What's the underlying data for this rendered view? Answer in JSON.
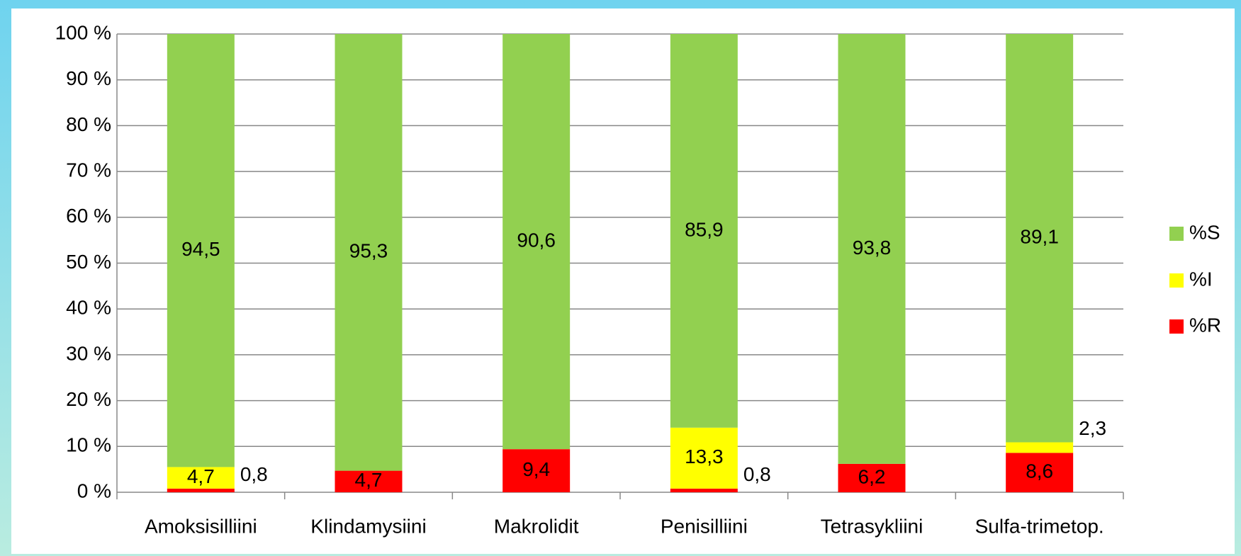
{
  "chart_data": {
    "type": "stacked_bar",
    "categories": [
      "Amoksisilliini",
      "Klindamysiini",
      "Makrolidit",
      "Penisilliini",
      "Tetrasykliini",
      "Sulfa-trimetop."
    ],
    "series": [
      {
        "name": "%R",
        "color": "#ff0000",
        "values": [
          0.8,
          4.7,
          9.4,
          0.8,
          6.2,
          8.6
        ],
        "value_labels": [
          "0,8",
          "4,7",
          "9,4",
          "0,8",
          "6,2",
          "8,6"
        ]
      },
      {
        "name": "%I",
        "color": "#ffff00",
        "values": [
          4.7,
          0,
          0,
          13.3,
          0,
          2.3
        ],
        "value_labels": [
          "4,7",
          null,
          null,
          "13,3",
          null,
          "2,3"
        ]
      },
      {
        "name": "%S",
        "color": "#92d050",
        "values": [
          94.5,
          95.3,
          90.6,
          85.9,
          93.8,
          89.1
        ],
        "value_labels": [
          "94,5",
          "95,3",
          "90,6",
          "85,9",
          "93,8",
          "89,1"
        ]
      }
    ],
    "ylim": [
      0,
      100
    ],
    "yticks": [
      {
        "value": 0,
        "label": "0 %"
      },
      {
        "value": 10,
        "label": "10 %"
      },
      {
        "value": 20,
        "label": "20 %"
      },
      {
        "value": 30,
        "label": "30 %"
      },
      {
        "value": 40,
        "label": "40 %"
      },
      {
        "value": 50,
        "label": "50 %"
      },
      {
        "value": 60,
        "label": "60 %"
      },
      {
        "value": 70,
        "label": "70 %"
      },
      {
        "value": 80,
        "label": "80 %"
      },
      {
        "value": 90,
        "label": "90 %"
      },
      {
        "value": 100,
        "label": "100 %"
      }
    ],
    "grid": true,
    "legend": "right"
  }
}
